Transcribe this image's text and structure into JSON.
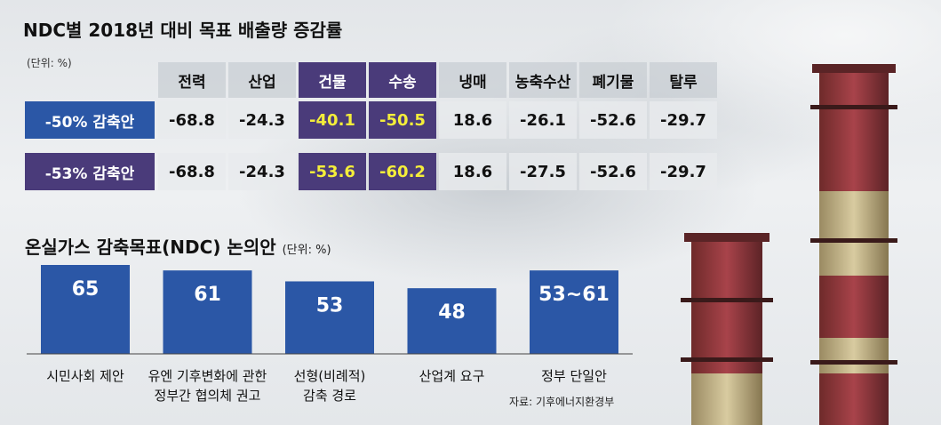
{
  "chart_data": [
    {
      "type": "table",
      "title": "NDC별 2018년 대비 목표 배출량 증감률",
      "unit": "(단위: %)",
      "columns": [
        "전력",
        "산업",
        "건물",
        "수송",
        "냉매",
        "농축수산",
        "폐기물",
        "탈루"
      ],
      "highlight_columns": [
        2,
        3
      ],
      "rows": [
        {
          "label": "-50% 감축안",
          "label_color": "#2b57a6",
          "values": [
            "-68.8",
            "-24.3",
            "-40.1",
            "-50.5",
            "18.6",
            "-26.1",
            "-52.6",
            "-29.7"
          ]
        },
        {
          "label": "-53% 감축안",
          "label_color": "#4a3b7a",
          "values": [
            "-68.8",
            "-24.3",
            "-53.6",
            "-60.2",
            "18.6",
            "-27.5",
            "-52.6",
            "-29.7"
          ]
        }
      ]
    },
    {
      "type": "bar",
      "title": "온실가스 감축목표(NDC) 논의안",
      "unit": "(단위: %)",
      "bar_color": "#2b57a6",
      "ylim": [
        0,
        65
      ],
      "categories": [
        [
          "시민사회 제안"
        ],
        [
          "유엔 기후변화에 관한",
          "정부간 협의체 권고"
        ],
        [
          "선형(비례적)",
          "감축 경로"
        ],
        [
          "산업계 요구"
        ],
        [
          "정부 단일안"
        ]
      ],
      "values": [
        65,
        61,
        53,
        48,
        61
      ],
      "range_low": [
        null,
        null,
        null,
        null,
        53
      ],
      "value_labels": [
        "65",
        "61",
        "53",
        "48",
        "53~61"
      ],
      "source": "자료: 기후에너지환경부"
    }
  ]
}
